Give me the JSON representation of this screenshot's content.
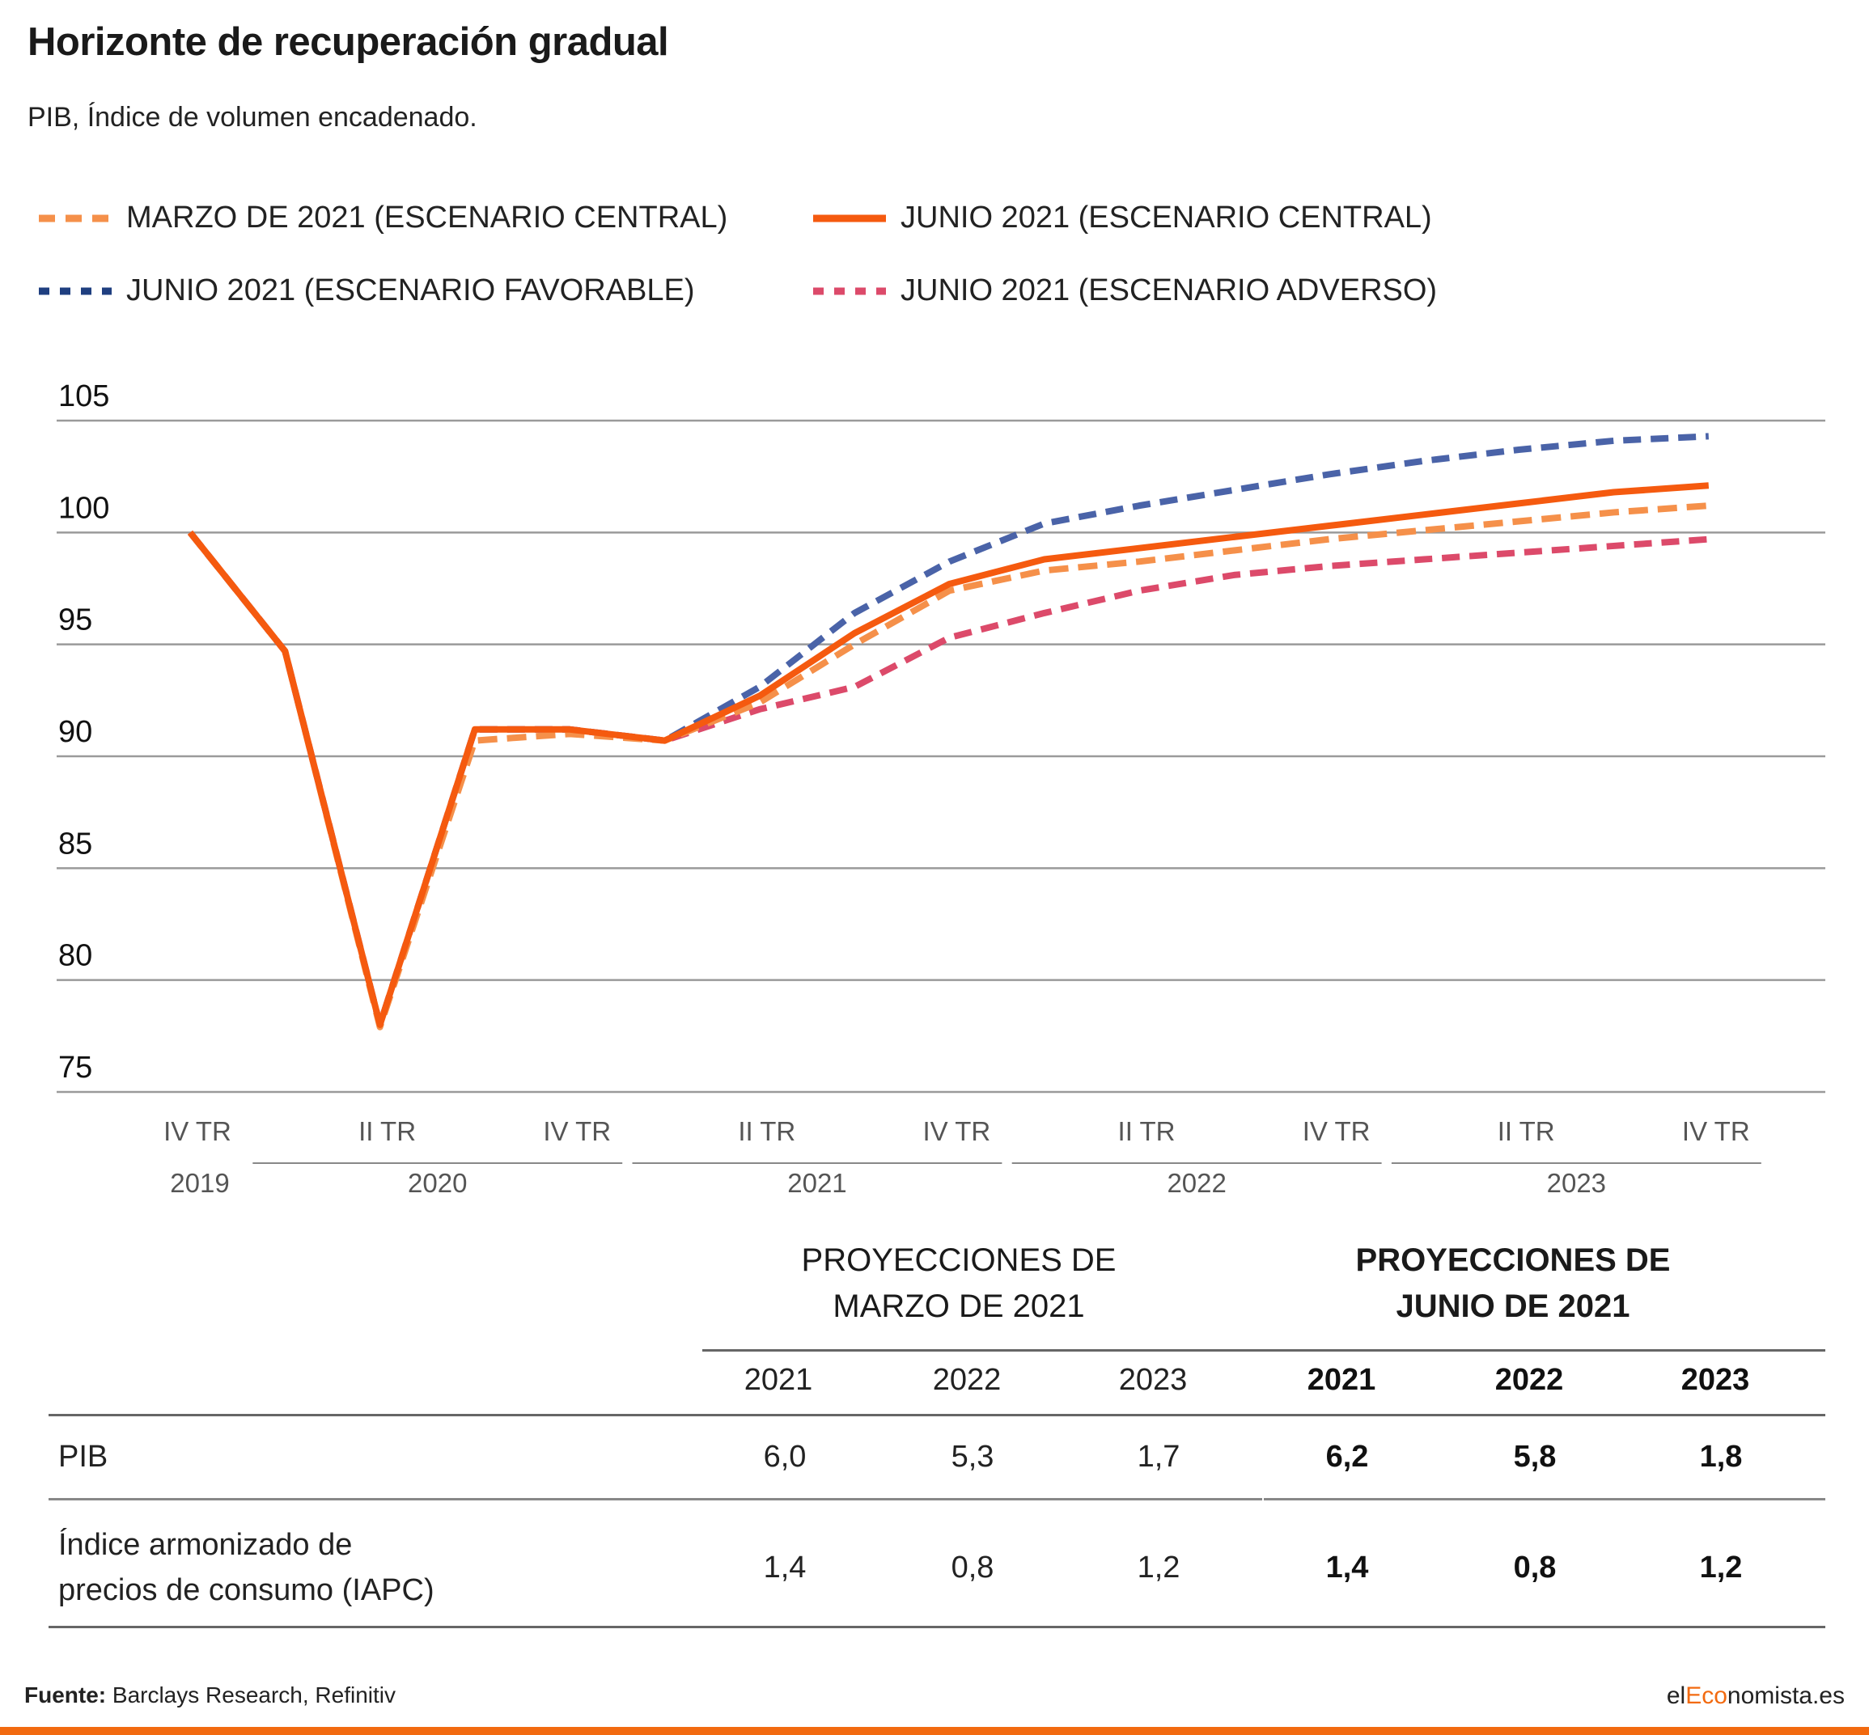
{
  "title": "Horizonte de recuperación gradual",
  "subtitle": "PIB, Índice de volumen encadenado.",
  "colors": {
    "marzo_central": "#f5904a",
    "junio_central": "#f55a0f",
    "junio_favorable": "#4a63a8",
    "junio_adverso": "#dc4a6a",
    "brand_orange": "#f26a10"
  },
  "chart_data": {
    "type": "line",
    "title": "Horizonte de recuperación gradual",
    "subtitle": "PIB, Índice de volumen encadenado.",
    "ylim": [
      75,
      105
    ],
    "yticks": [
      "105",
      "100",
      "95",
      "90",
      "85",
      "80",
      "75"
    ],
    "grid": true,
    "legend_position": "top",
    "x_quarters": [
      "IV TR 2019",
      "I TR 2020",
      "II TR 2020",
      "III TR 2020",
      "IV TR 2020",
      "I TR 2021",
      "II TR 2021",
      "III TR 2021",
      "IV TR 2021",
      "I TR 2022",
      "II TR 2022",
      "III TR 2022",
      "IV TR 2022",
      "I TR 2023",
      "II TR 2023",
      "III TR 2023",
      "IV TR 2023"
    ],
    "x_tick_labels": [
      {
        "label": "IV TR",
        "index": 0
      },
      {
        "label": "II TR",
        "index": 2
      },
      {
        "label": "IV TR",
        "index": 4
      },
      {
        "label": "II TR",
        "index": 6
      },
      {
        "label": "IV TR",
        "index": 8
      },
      {
        "label": "II TR",
        "index": 10
      },
      {
        "label": "IV TR",
        "index": 12
      },
      {
        "label": "II TR",
        "index": 14
      },
      {
        "label": "IV TR",
        "index": 16
      }
    ],
    "year_groups": [
      {
        "label": "2019",
        "start": 0,
        "end": 0,
        "underline": false
      },
      {
        "label": "2020",
        "start": 1,
        "end": 4,
        "underline": true
      },
      {
        "label": "2021",
        "start": 5,
        "end": 8,
        "underline": true
      },
      {
        "label": "2022",
        "start": 9,
        "end": 12,
        "underline": true
      },
      {
        "label": "2023",
        "start": 13,
        "end": 16,
        "underline": true
      }
    ],
    "series": [
      {
        "name": "MARZO DE 2021 (ESCENARIO CENTRAL)",
        "style": "dashed",
        "color": "#f5904a",
        "width": 8,
        "values": [
          100,
          94.7,
          77.9,
          90.7,
          91.0,
          90.7,
          92.4,
          95.0,
          97.4,
          98.3,
          98.7,
          99.2,
          99.7,
          100.1,
          100.5,
          100.9,
          101.2
        ]
      },
      {
        "name": "JUNIO 2021 (ESCENARIO CENTRAL)",
        "style": "solid",
        "color": "#f55a0f",
        "width": 8,
        "values": [
          100,
          94.7,
          78.0,
          91.2,
          91.2,
          90.7,
          92.7,
          95.5,
          97.7,
          98.8,
          99.3,
          99.8,
          100.3,
          100.8,
          101.3,
          101.8,
          102.1
        ]
      },
      {
        "name": "JUNIO 2021 (ESCENARIO FAVORABLE)",
        "style": "dashed",
        "color": "#4a63a8",
        "width": 8,
        "values": [
          100,
          94.7,
          78.0,
          91.2,
          91.2,
          90.7,
          93.1,
          96.4,
          98.7,
          100.4,
          101.2,
          101.9,
          102.6,
          103.2,
          103.7,
          104.1,
          104.3
        ]
      },
      {
        "name": "JUNIO 2021 (ESCENARIO ADVERSO)",
        "style": "dashed",
        "color": "#dc4a6a",
        "width": 8,
        "values": [
          100,
          94.7,
          78.0,
          91.2,
          91.2,
          90.7,
          92.1,
          93.1,
          95.3,
          96.4,
          97.4,
          98.1,
          98.5,
          98.8,
          99.1,
          99.4,
          99.7
        ]
      }
    ]
  },
  "table": {
    "march_header": [
      "PROYECCIONES DE",
      "MARZO DE 2021"
    ],
    "june_header": [
      "PROYECCIONES DE",
      "JUNIO DE 2021"
    ],
    "years_march": [
      "2021",
      "2022",
      "2023"
    ],
    "years_june": [
      "2021",
      "2022",
      "2023"
    ],
    "rows": [
      {
        "label_lines": [
          "PIB"
        ],
        "march": [
          "6,0",
          "5,3",
          "1,7"
        ],
        "june": [
          "6,2",
          "5,8",
          "1,8"
        ]
      },
      {
        "label_lines": [
          "Índice armonizado de",
          "precios de consumo (IAPC)"
        ],
        "march": [
          "1,4",
          "0,8",
          "1,2"
        ],
        "june": [
          "1,4",
          "0,8",
          "1,2"
        ]
      }
    ]
  },
  "footer": {
    "source_label": "Fuente:",
    "source_text": " Barclays Research, Refinitiv",
    "brand_prefix": "el",
    "brand_accent": "Eco",
    "brand_suffix": "nomista.es"
  }
}
